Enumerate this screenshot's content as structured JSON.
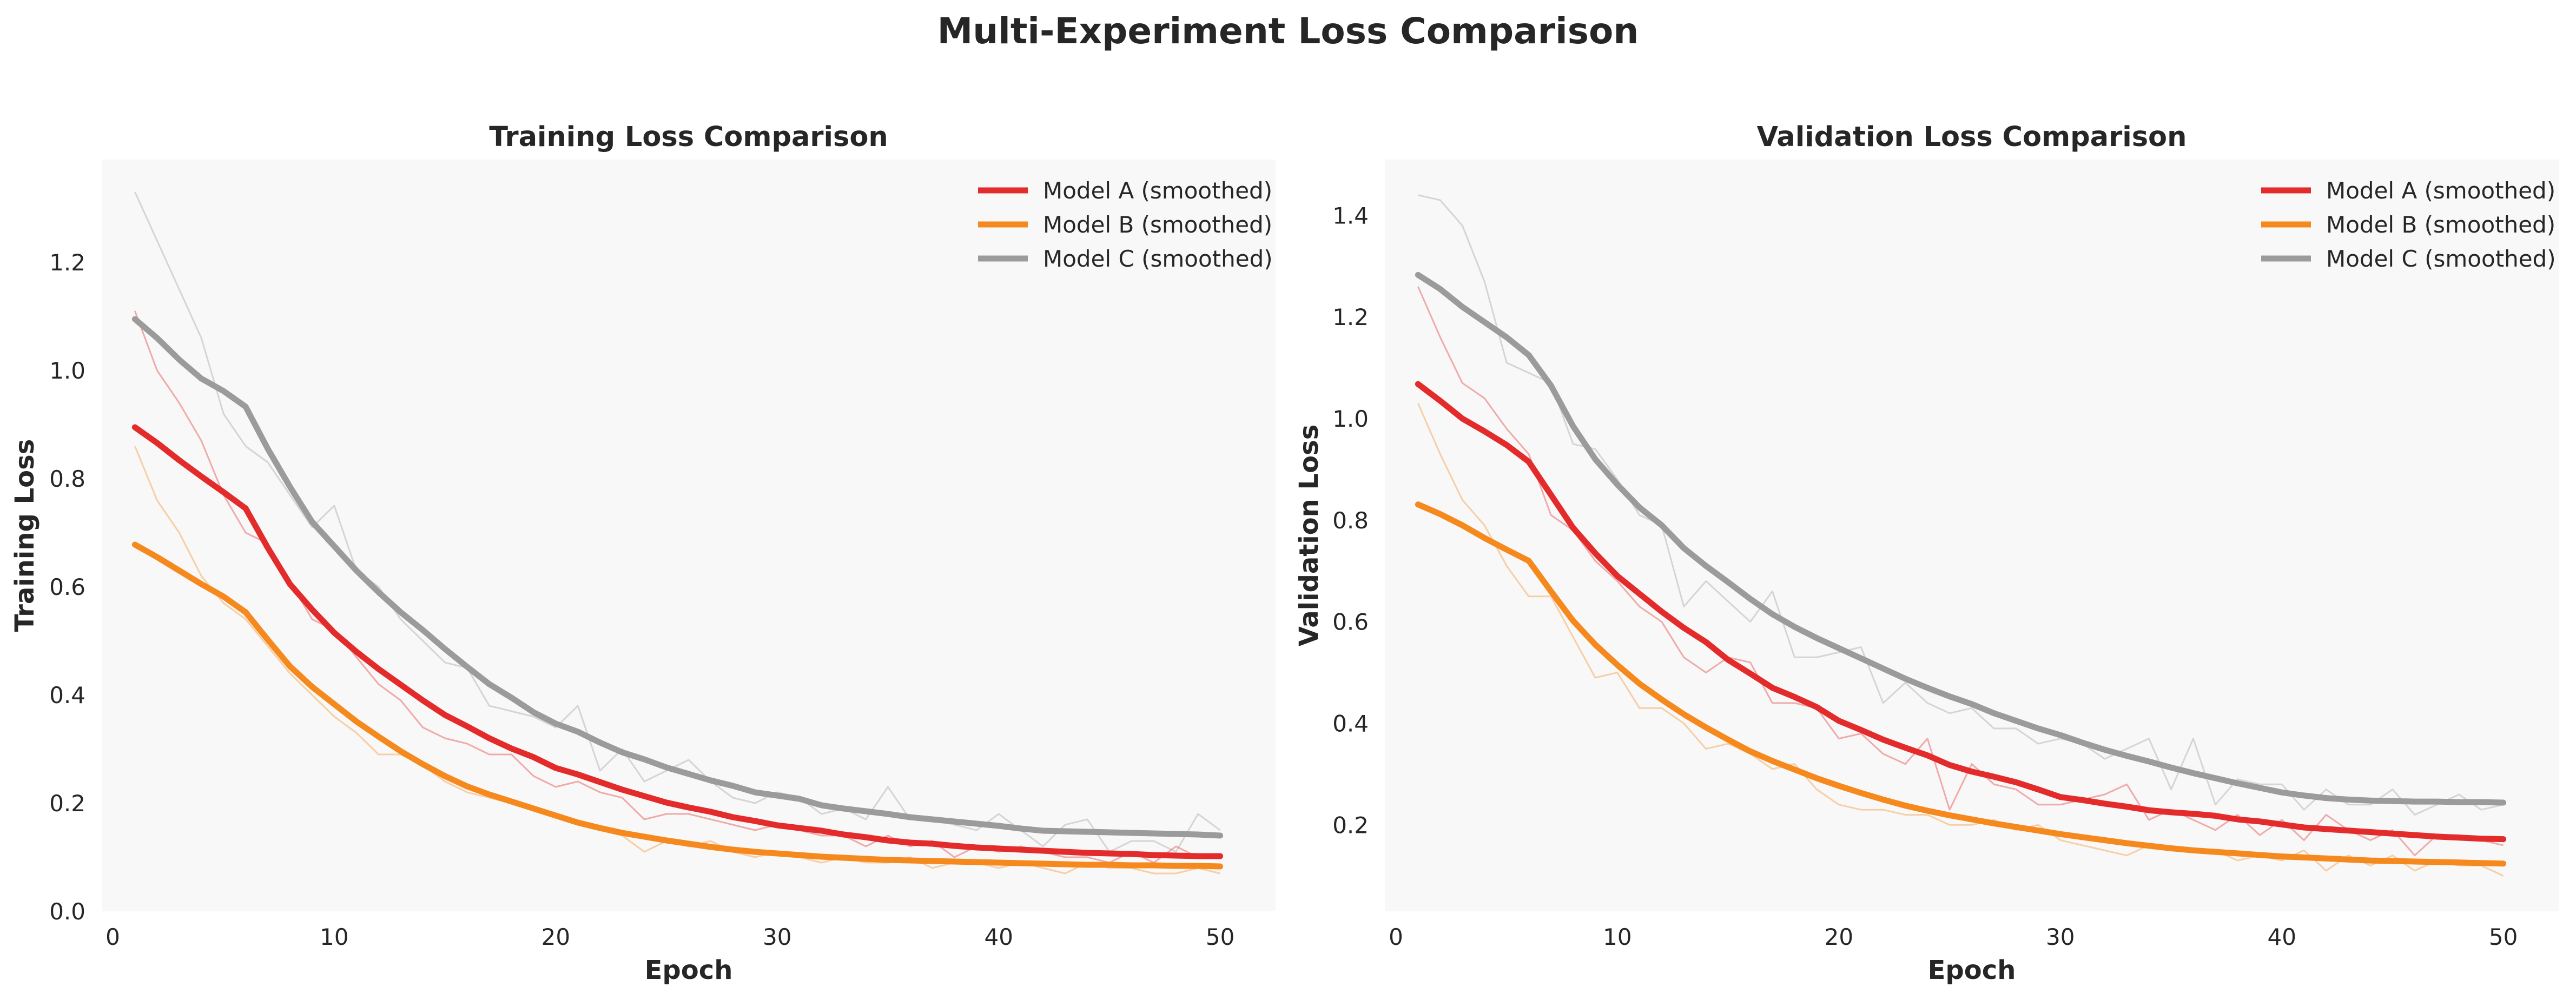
{
  "figure": {
    "title": "Multi-Experiment Loss Comparison"
  },
  "chart_data": [
    {
      "type": "line",
      "title": "Training Loss Comparison",
      "xlabel": "Epoch",
      "ylabel": "Training Loss",
      "xlim": [
        -0.5,
        52.5
      ],
      "ylim": [
        0.0,
        1.39
      ],
      "xticks": [
        0,
        10,
        20,
        30,
        40,
        50
      ],
      "yticks": [
        0.0,
        0.2,
        0.4,
        0.6,
        0.8,
        1.0,
        1.2
      ],
      "ytick_labels": [
        "0.0",
        "0.2",
        "0.4",
        "0.6",
        "0.8",
        "1.0",
        "1.2"
      ],
      "grid": false,
      "background": "#f8f8f8",
      "legend_position": "top-right",
      "x": [
        1,
        2,
        3,
        4,
        5,
        6,
        7,
        8,
        9,
        10,
        11,
        12,
        13,
        14,
        15,
        16,
        17,
        18,
        19,
        20,
        21,
        22,
        23,
        24,
        25,
        26,
        27,
        28,
        29,
        30,
        31,
        32,
        33,
        34,
        35,
        36,
        37,
        38,
        39,
        40,
        41,
        42,
        43,
        44,
        45,
        46,
        47,
        48,
        49,
        50
      ],
      "series": [
        {
          "name": "Model A (smoothed)",
          "color": "#e32b2b",
          "raw_values": [
            1.11,
            1.0,
            0.94,
            0.87,
            0.77,
            0.7,
            0.68,
            0.61,
            0.54,
            0.52,
            0.47,
            0.42,
            0.39,
            0.34,
            0.32,
            0.31,
            0.29,
            0.29,
            0.25,
            0.23,
            0.24,
            0.22,
            0.21,
            0.17,
            0.18,
            0.18,
            0.17,
            0.16,
            0.15,
            0.16,
            0.15,
            0.14,
            0.14,
            0.12,
            0.14,
            0.12,
            0.13,
            0.1,
            0.12,
            0.11,
            0.12,
            0.11,
            0.1,
            0.1,
            0.09,
            0.11,
            0.09,
            0.12,
            0.1,
            0.1
          ],
          "values": [
            0.895,
            0.866,
            0.834,
            0.804,
            0.775,
            0.745,
            0.672,
            0.605,
            0.558,
            0.515,
            0.48,
            0.448,
            0.419,
            0.39,
            0.363,
            0.342,
            0.32,
            0.301,
            0.285,
            0.265,
            0.253,
            0.239,
            0.225,
            0.213,
            0.201,
            0.192,
            0.184,
            0.174,
            0.167,
            0.159,
            0.154,
            0.149,
            0.142,
            0.137,
            0.131,
            0.127,
            0.125,
            0.121,
            0.118,
            0.116,
            0.114,
            0.112,
            0.11,
            0.108,
            0.107,
            0.106,
            0.104,
            0.103,
            0.102,
            0.102
          ]
        },
        {
          "name": "Model B (smoothed)",
          "color": "#f5891e",
          "raw_values": [
            0.86,
            0.76,
            0.7,
            0.62,
            0.57,
            0.54,
            0.49,
            0.44,
            0.4,
            0.36,
            0.33,
            0.29,
            0.29,
            0.27,
            0.24,
            0.22,
            0.21,
            0.2,
            0.19,
            0.18,
            0.16,
            0.15,
            0.14,
            0.11,
            0.13,
            0.12,
            0.13,
            0.11,
            0.1,
            0.11,
            0.1,
            0.09,
            0.1,
            0.09,
            0.09,
            0.1,
            0.08,
            0.09,
            0.09,
            0.08,
            0.09,
            0.08,
            0.07,
            0.09,
            0.08,
            0.08,
            0.07,
            0.07,
            0.08,
            0.07
          ],
          "values": [
            0.678,
            0.655,
            0.63,
            0.605,
            0.582,
            0.553,
            0.502,
            0.453,
            0.415,
            0.383,
            0.351,
            0.323,
            0.296,
            0.272,
            0.25,
            0.231,
            0.216,
            0.203,
            0.19,
            0.177,
            0.164,
            0.154,
            0.145,
            0.138,
            0.131,
            0.125,
            0.119,
            0.114,
            0.11,
            0.107,
            0.104,
            0.101,
            0.099,
            0.097,
            0.095,
            0.094,
            0.093,
            0.092,
            0.091,
            0.09,
            0.089,
            0.088,
            0.087,
            0.086,
            0.086,
            0.085,
            0.085,
            0.084,
            0.084,
            0.083
          ]
        },
        {
          "name": "Model C (smoothed)",
          "color": "#9b9b9b",
          "raw_values": [
            1.33,
            1.24,
            1.15,
            1.06,
            0.92,
            0.86,
            0.83,
            0.77,
            0.71,
            0.75,
            0.63,
            0.6,
            0.54,
            0.5,
            0.46,
            0.45,
            0.38,
            0.37,
            0.36,
            0.34,
            0.38,
            0.26,
            0.3,
            0.24,
            0.26,
            0.28,
            0.24,
            0.21,
            0.2,
            0.22,
            0.21,
            0.18,
            0.19,
            0.17,
            0.23,
            0.17,
            0.17,
            0.16,
            0.15,
            0.18,
            0.15,
            0.12,
            0.16,
            0.17,
            0.11,
            0.13,
            0.13,
            0.11,
            0.18,
            0.15
          ],
          "values": [
            1.095,
            1.06,
            1.02,
            0.985,
            0.962,
            0.933,
            0.855,
            0.785,
            0.72,
            0.675,
            0.63,
            0.59,
            0.553,
            0.52,
            0.485,
            0.452,
            0.42,
            0.395,
            0.368,
            0.347,
            0.332,
            0.312,
            0.294,
            0.281,
            0.266,
            0.254,
            0.242,
            0.232,
            0.22,
            0.214,
            0.208,
            0.196,
            0.19,
            0.185,
            0.18,
            0.174,
            0.17,
            0.166,
            0.162,
            0.158,
            0.153,
            0.149,
            0.148,
            0.147,
            0.146,
            0.145,
            0.144,
            0.143,
            0.142,
            0.14
          ]
        }
      ]
    },
    {
      "type": "line",
      "title": "Validation Loss Comparison",
      "xlabel": "Epoch",
      "ylabel": "Validation Loss",
      "xlim": [
        -0.5,
        52.5
      ],
      "ylim": [
        0.03,
        1.51
      ],
      "xticks": [
        0,
        10,
        20,
        30,
        40,
        50
      ],
      "yticks": [
        0.2,
        0.4,
        0.6,
        0.8,
        1.0,
        1.2,
        1.4
      ],
      "ytick_labels": [
        "0.2",
        "0.4",
        "0.6",
        "0.8",
        "1.0",
        "1.2",
        "1.4"
      ],
      "grid": false,
      "background": "#f8f8f8",
      "legend_position": "top-right",
      "x": [
        1,
        2,
        3,
        4,
        5,
        6,
        7,
        8,
        9,
        10,
        11,
        12,
        13,
        14,
        15,
        16,
        17,
        18,
        19,
        20,
        21,
        22,
        23,
        24,
        25,
        26,
        27,
        28,
        29,
        30,
        31,
        32,
        33,
        34,
        35,
        36,
        37,
        38,
        39,
        40,
        41,
        42,
        43,
        44,
        45,
        46,
        47,
        48,
        49,
        50
      ],
      "series": [
        {
          "name": "Model A (smoothed)",
          "color": "#e32b2b",
          "raw_values": [
            1.26,
            1.16,
            1.07,
            1.04,
            0.98,
            0.93,
            0.81,
            0.78,
            0.72,
            0.68,
            0.63,
            0.6,
            0.53,
            0.5,
            0.53,
            0.52,
            0.44,
            0.44,
            0.43,
            0.37,
            0.38,
            0.34,
            0.32,
            0.37,
            0.23,
            0.32,
            0.28,
            0.27,
            0.24,
            0.24,
            0.25,
            0.26,
            0.28,
            0.21,
            0.23,
            0.21,
            0.19,
            0.22,
            0.18,
            0.21,
            0.17,
            0.22,
            0.19,
            0.17,
            0.19,
            0.14,
            0.18,
            0.18,
            0.17,
            0.16
          ],
          "values": [
            1.068,
            1.035,
            1.0,
            0.975,
            0.948,
            0.915,
            0.85,
            0.785,
            0.735,
            0.69,
            0.655,
            0.62,
            0.588,
            0.56,
            0.525,
            0.498,
            0.47,
            0.452,
            0.432,
            0.405,
            0.387,
            0.368,
            0.352,
            0.337,
            0.318,
            0.305,
            0.295,
            0.284,
            0.27,
            0.255,
            0.249,
            0.242,
            0.236,
            0.229,
            0.225,
            0.222,
            0.218,
            0.211,
            0.207,
            0.201,
            0.195,
            0.192,
            0.189,
            0.186,
            0.183,
            0.18,
            0.177,
            0.175,
            0.173,
            0.172
          ]
        },
        {
          "name": "Model B (smoothed)",
          "color": "#f5891e",
          "raw_values": [
            1.03,
            0.93,
            0.84,
            0.79,
            0.71,
            0.65,
            0.65,
            0.57,
            0.49,
            0.5,
            0.43,
            0.43,
            0.4,
            0.35,
            0.36,
            0.34,
            0.31,
            0.32,
            0.27,
            0.24,
            0.23,
            0.23,
            0.22,
            0.22,
            0.2,
            0.2,
            0.21,
            0.19,
            0.2,
            0.17,
            0.16,
            0.15,
            0.14,
            0.16,
            0.15,
            0.15,
            0.15,
            0.13,
            0.14,
            0.13,
            0.15,
            0.11,
            0.14,
            0.12,
            0.14,
            0.11,
            0.13,
            0.12,
            0.12,
            0.1
          ],
          "values": [
            0.831,
            0.812,
            0.79,
            0.765,
            0.742,
            0.72,
            0.66,
            0.602,
            0.555,
            0.515,
            0.478,
            0.447,
            0.418,
            0.392,
            0.368,
            0.345,
            0.326,
            0.309,
            0.292,
            0.277,
            0.263,
            0.25,
            0.238,
            0.228,
            0.219,
            0.211,
            0.203,
            0.196,
            0.189,
            0.182,
            0.176,
            0.17,
            0.164,
            0.159,
            0.154,
            0.15,
            0.147,
            0.144,
            0.141,
            0.138,
            0.136,
            0.134,
            0.132,
            0.13,
            0.129,
            0.128,
            0.127,
            0.126,
            0.125,
            0.124
          ]
        },
        {
          "name": "Model C (smoothed)",
          "color": "#9b9b9b",
          "raw_values": [
            1.44,
            1.43,
            1.38,
            1.27,
            1.11,
            1.09,
            1.07,
            0.95,
            0.94,
            0.88,
            0.81,
            0.79,
            0.63,
            0.68,
            0.64,
            0.6,
            0.66,
            0.53,
            0.53,
            0.54,
            0.55,
            0.44,
            0.48,
            0.44,
            0.42,
            0.43,
            0.39,
            0.39,
            0.36,
            0.37,
            0.36,
            0.33,
            0.35,
            0.37,
            0.27,
            0.37,
            0.24,
            0.29,
            0.28,
            0.28,
            0.23,
            0.27,
            0.24,
            0.24,
            0.27,
            0.22,
            0.24,
            0.26,
            0.23,
            0.24
          ],
          "values": [
            1.283,
            1.255,
            1.22,
            1.19,
            1.16,
            1.125,
            1.065,
            0.985,
            0.92,
            0.87,
            0.825,
            0.79,
            0.745,
            0.71,
            0.678,
            0.645,
            0.615,
            0.59,
            0.568,
            0.548,
            0.528,
            0.508,
            0.488,
            0.47,
            0.453,
            0.438,
            0.42,
            0.405,
            0.39,
            0.377,
            0.362,
            0.348,
            0.336,
            0.325,
            0.313,
            0.302,
            0.292,
            0.282,
            0.273,
            0.264,
            0.258,
            0.253,
            0.25,
            0.248,
            0.247,
            0.246,
            0.246,
            0.245,
            0.245,
            0.244
          ]
        }
      ]
    }
  ]
}
